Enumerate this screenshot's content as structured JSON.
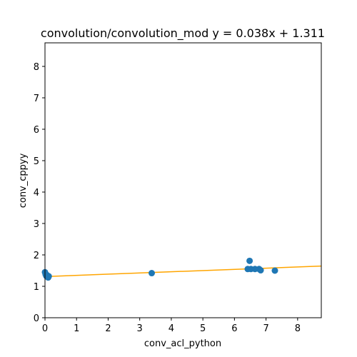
{
  "chart_data": {
    "type": "scatter",
    "title": "convolution/convolution_mod y = 0.038x + 1.311",
    "xlabel": "conv_acl_python",
    "ylabel": "conv_cppyy",
    "xlim": [
      0,
      8.75
    ],
    "ylim": [
      0,
      8.75
    ],
    "xticks": [
      0,
      1,
      2,
      3,
      4,
      5,
      6,
      7,
      8
    ],
    "yticks": [
      0,
      1,
      2,
      3,
      4,
      5,
      6,
      7,
      8
    ],
    "grid": false,
    "points": [
      {
        "x": 0.0,
        "y": 1.45
      },
      {
        "x": 0.02,
        "y": 1.38
      },
      {
        "x": 0.04,
        "y": 1.33
      },
      {
        "x": 0.06,
        "y": 1.36
      },
      {
        "x": 0.08,
        "y": 1.3
      },
      {
        "x": 0.1,
        "y": 1.28
      },
      {
        "x": 0.12,
        "y": 1.32
      },
      {
        "x": 3.38,
        "y": 1.42
      },
      {
        "x": 6.42,
        "y": 1.55
      },
      {
        "x": 6.48,
        "y": 1.81
      },
      {
        "x": 6.52,
        "y": 1.55
      },
      {
        "x": 6.65,
        "y": 1.55
      },
      {
        "x": 6.78,
        "y": 1.55
      },
      {
        "x": 6.83,
        "y": 1.51
      },
      {
        "x": 7.28,
        "y": 1.5
      }
    ],
    "fit": {
      "slope": 0.038,
      "intercept": 1.311
    },
    "colors": {
      "points": "#1f77b4",
      "fit_line": "#ffa500"
    }
  }
}
